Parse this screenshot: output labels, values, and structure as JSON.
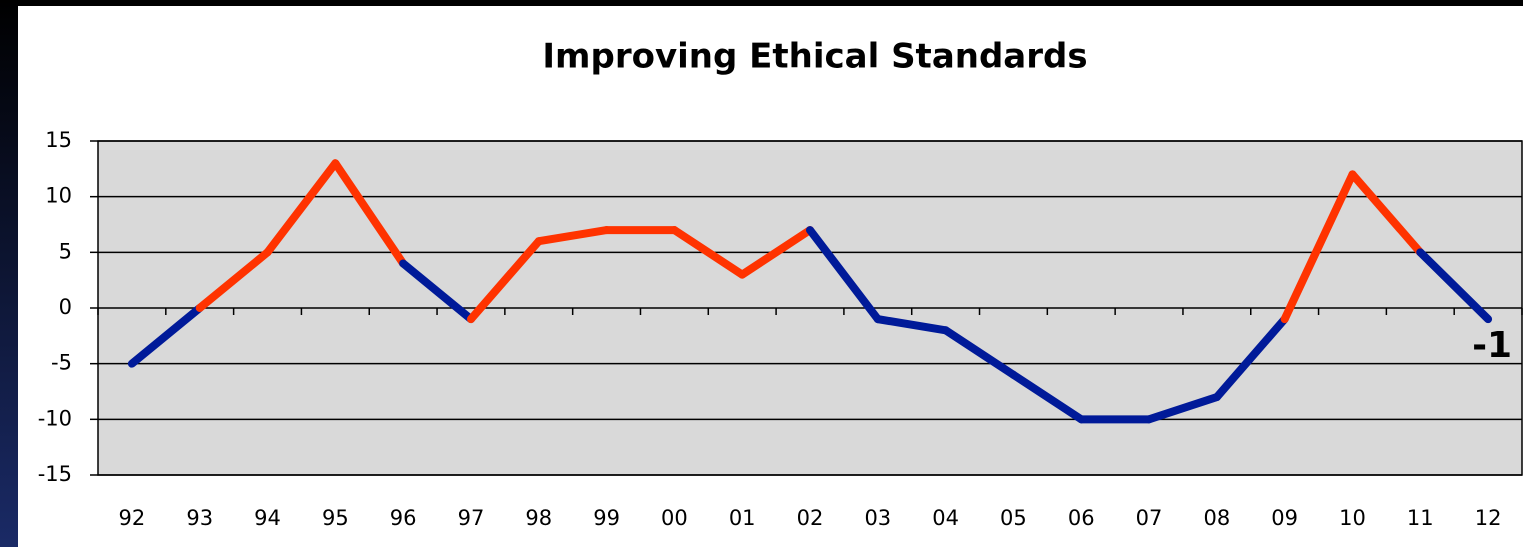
{
  "chart_data": {
    "type": "line",
    "title": "Improving Ethical Standards",
    "categories": [
      "92",
      "93",
      "94",
      "95",
      "96",
      "97",
      "98",
      "99",
      "00",
      "01",
      "02",
      "03",
      "04",
      "05",
      "06",
      "07",
      "08",
      "09",
      "10",
      "11",
      "12"
    ],
    "values": [
      -5,
      0,
      5,
      13,
      4,
      -1,
      6,
      7,
      7,
      3,
      7,
      -1,
      -2,
      -6,
      -10,
      -10,
      -8,
      -1,
      12,
      5,
      -1
    ],
    "segment_colors": [
      "#001a99",
      "#ff3300",
      "#ff3300",
      "#ff3300",
      "#001a99",
      "#ff3300",
      "#ff3300",
      "#ff3300",
      "#ff3300",
      "#ff3300",
      "#001a99",
      "#001a99",
      "#001a99",
      "#001a99",
      "#001a99",
      "#001a99",
      "#001a99",
      "#ff3300",
      "#ff3300",
      "#001a99"
    ],
    "ylim": [
      -15,
      15
    ],
    "yticks": [
      -15,
      -10,
      -5,
      0,
      5,
      10,
      15
    ],
    "grid": true
  }
}
